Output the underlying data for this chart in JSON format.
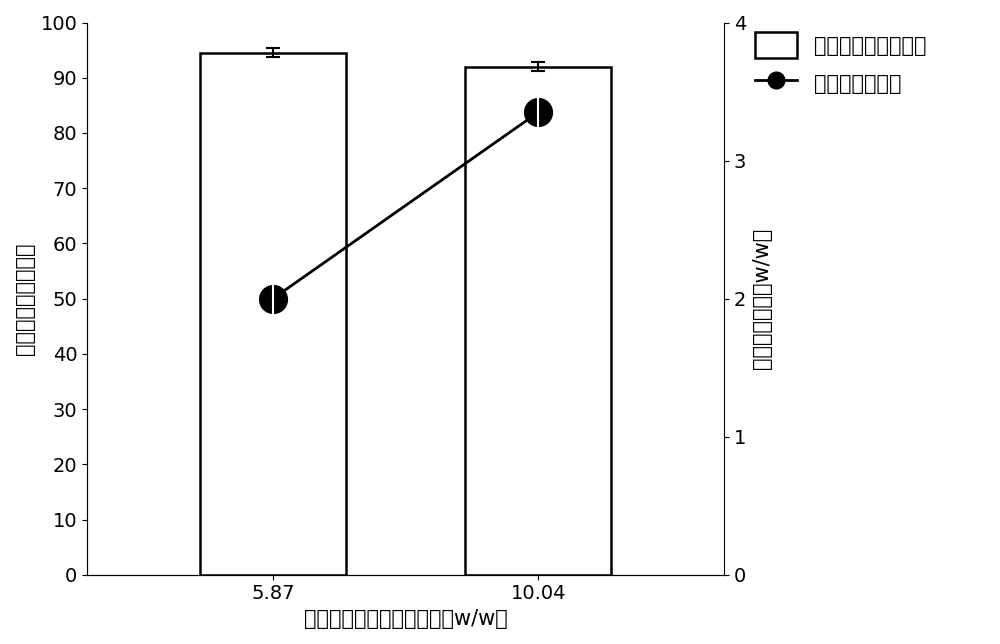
{
  "categories": [
    "5.87",
    "10.04"
  ],
  "bar_values": [
    94.5,
    92.0
  ],
  "bar_errors": [
    0.8,
    0.8
  ],
  "line_values": [
    2.0,
    3.35
  ],
  "line_errors": [
    0.15,
    0.12
  ],
  "bar_color": "#ffffff",
  "bar_edgecolor": "#000000",
  "line_color": "#000000",
  "marker_color": "#000000",
  "xlabel": "小麦秸秵中灰分含量（％，w/w）",
  "ylabel_left": "纤维素转化率（％）",
  "ylabel_right": "硫酸用量（％，w/w）",
  "ylim_left": [
    0,
    100
  ],
  "ylim_right": [
    0,
    4
  ],
  "yticks_left": [
    0,
    10,
    20,
    30,
    40,
    50,
    60,
    70,
    80,
    90,
    100
  ],
  "yticks_right": [
    0,
    1,
    2,
    3,
    4
  ],
  "legend_bar_label": "纤维素转化率（％）",
  "legend_line_label": "硫酸用量（％）",
  "bar_positions": [
    1,
    2
  ],
  "xlim": [
    0.3,
    2.7
  ],
  "figsize": [
    10.0,
    6.44
  ],
  "dpi": 100,
  "font_size_labels": 15,
  "font_size_ticks": 14,
  "font_size_legend": 15,
  "background_color": "#ffffff"
}
